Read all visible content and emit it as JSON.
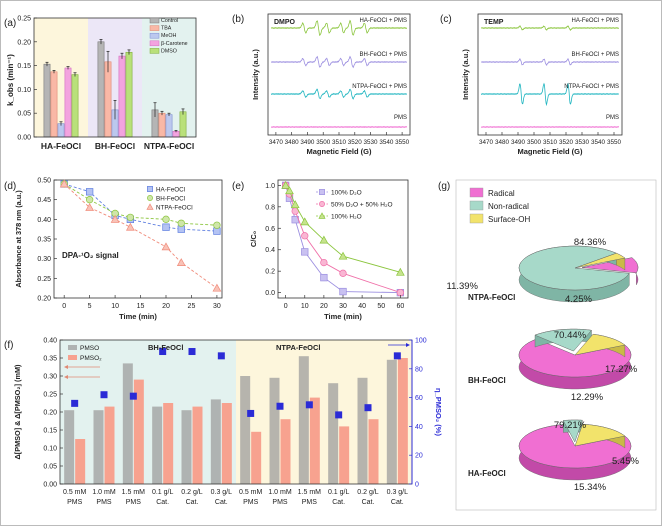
{
  "figure_colors": {
    "pink": "#f06fd2",
    "green": "#8cc63f",
    "grey": "#9e9e9e",
    "salmon": "#f7a28f",
    "blue": "#2b2bd6",
    "cyan": "#1fb5c0",
    "purple": "#9c8fe0",
    "teal_pie": "#a7d9c9",
    "yellow_pie": "#f2e36b",
    "yellow_bg": "#fdf6dc",
    "purple_bg": "#ece7f7",
    "teal_bg": "#e3f2ef"
  },
  "chart_data": [
    {
      "panel": "(a)",
      "type": "bar",
      "ylabel": "k_obs (min⁻¹)",
      "ylim": [
        0,
        0.25
      ],
      "yticks": [
        "0.00",
        "0.05",
        "0.10",
        "0.15",
        "0.20",
        "0.25"
      ],
      "categories": [
        "HA-FeOCl",
        "BH-FeOCl",
        "NTPA-FeOCl"
      ],
      "series": [
        {
          "name": "Control",
          "values": [
            0.153,
            0.2,
            0.057
          ],
          "errors": [
            0.004,
            0.005,
            0.015
          ]
        },
        {
          "name": "TBA",
          "values": [
            0.137,
            0.158,
            0.05
          ],
          "errors": [
            0.003,
            0.022,
            0.004
          ]
        },
        {
          "name": "MeOH",
          "values": [
            0.028,
            0.057,
            0.047
          ],
          "errors": [
            0.004,
            0.02,
            0.003
          ]
        },
        {
          "name": "β-Carotene",
          "values": [
            0.145,
            0.17,
            0.012
          ],
          "errors": [
            0.003,
            0.006,
            0.002
          ]
        },
        {
          "name": "DMSO",
          "values": [
            0.131,
            0.178,
            0.053
          ],
          "errors": [
            0.004,
            0.005,
            0.006
          ]
        }
      ]
    },
    {
      "panel": "(b)",
      "type": "line",
      "title": "DMPO",
      "xlabel": "Magnetic Field (G)",
      "ylabel": "Intensity (a.u.)",
      "xlim": [
        3465,
        3555
      ],
      "xticks": [
        "3470",
        "3480",
        "3490",
        "3500",
        "3510",
        "3520",
        "3530",
        "3540",
        "3550"
      ],
      "series": [
        {
          "name": "HA-FeOCl + PMS"
        },
        {
          "name": "BH-FeOCl + PMS"
        },
        {
          "name": "NTPA-FeOCl + PMS"
        },
        {
          "name": "PMS"
        }
      ]
    },
    {
      "panel": "(c)",
      "type": "line",
      "title": "TEMP",
      "xlabel": "Magnetic Field (G)",
      "ylabel": "Intensity (a.u.)",
      "xlim": [
        3465,
        3555
      ],
      "xticks": [
        "3470",
        "3480",
        "3490",
        "3500",
        "3510",
        "3520",
        "3530",
        "3540",
        "3550"
      ],
      "series": [
        {
          "name": "HA-FeOCl + PMS"
        },
        {
          "name": "BH-FeOCl + PMS"
        },
        {
          "name": "NTPA-FeOCl + PMS"
        },
        {
          "name": "PMS"
        }
      ]
    },
    {
      "panel": "(d)",
      "type": "line",
      "xlabel": "Time (min)",
      "ylabel": "Absorbance at 378 nm (a.u.)",
      "xlim": [
        -2,
        31
      ],
      "ylim": [
        0.2,
        0.5
      ],
      "xticks": [
        "0",
        "5",
        "10",
        "15",
        "20",
        "25",
        "30"
      ],
      "yticks": [
        "0.20",
        "0.25",
        "0.30",
        "0.35",
        "0.40",
        "0.45",
        "0.50"
      ],
      "annotation": "DPA-¹O₂ signal",
      "x": [
        0,
        5,
        10,
        13,
        20,
        23,
        30
      ],
      "series": [
        {
          "name": "HA-FeOCl",
          "values": [
            0.49,
            0.47,
            0.41,
            0.4,
            0.38,
            0.375,
            0.37
          ]
        },
        {
          "name": "BH-FeOCl",
          "values": [
            0.49,
            0.45,
            0.415,
            0.405,
            0.4,
            0.39,
            0.385
          ]
        },
        {
          "name": "NTPA-FeOCl",
          "values": [
            0.49,
            0.43,
            0.4,
            0.38,
            0.33,
            0.29,
            0.225
          ]
        }
      ]
    },
    {
      "panel": "(e)",
      "type": "line",
      "xlabel": "Time (min)",
      "ylabel": "C/C₀",
      "xlim": [
        -4,
        64
      ],
      "ylim": [
        -0.05,
        1.05
      ],
      "xticks": [
        "0",
        "10",
        "20",
        "30",
        "40",
        "50",
        "60"
      ],
      "yticks": [
        "0.0",
        "0.2",
        "0.4",
        "0.6",
        "0.8",
        "1.0"
      ],
      "x": [
        0,
        2,
        5,
        10,
        20,
        30,
        60
      ],
      "series": [
        {
          "name": "100% D₂O",
          "values": [
            1.0,
            0.88,
            0.68,
            0.38,
            0.14,
            0.01,
            0.0
          ]
        },
        {
          "name": "50% D₂O + 50% H₂O",
          "values": [
            1.0,
            0.92,
            0.76,
            0.53,
            0.28,
            0.18,
            0.0
          ]
        },
        {
          "name": "100% H₂O",
          "values": [
            1.0,
            0.95,
            0.82,
            0.66,
            0.49,
            0.34,
            0.19
          ]
        }
      ]
    },
    {
      "panel": "(f)",
      "type": "bar",
      "ylabel": "Δ[PMSO] & Δ[PMSO₂] (mM)",
      "y2label": "η_PMSO₂ (%)",
      "ylim": [
        0,
        0.4
      ],
      "y2lim": [
        0,
        100
      ],
      "yticks": [
        "0.00",
        "0.05",
        "0.10",
        "0.15",
        "0.20",
        "0.25",
        "0.30",
        "0.35",
        "0.40"
      ],
      "y2ticks": [
        "0",
        "20",
        "40",
        "60",
        "80",
        "100"
      ],
      "group_labels": [
        "BH-FeOCl",
        "NTPA-FeOCl"
      ],
      "categories": [
        [
          "0.5 mM",
          "PMS"
        ],
        [
          "1.0 mM",
          "PMS"
        ],
        [
          "1.5 mM",
          "PMS"
        ],
        [
          "0.1 g/L",
          "Cat."
        ],
        [
          "0.2 g/L",
          "Cat."
        ],
        [
          "0.3 g/L",
          "Cat."
        ],
        [
          "0.5 mM",
          "PMS"
        ],
        [
          "1.0 mM",
          "PMS"
        ],
        [
          "1.5 mM",
          "PMS"
        ],
        [
          "0.1 g/L",
          "Cat."
        ],
        [
          "0.2 g/L",
          "Cat."
        ],
        [
          "0.3 g/L",
          "Cat."
        ]
      ],
      "series": [
        {
          "name": "PMSO",
          "values": [
            0.205,
            0.205,
            0.335,
            0.215,
            0.205,
            0.235,
            0.3,
            0.295,
            0.355,
            0.28,
            0.295,
            0.345
          ]
        },
        {
          "name": "PMSO₂",
          "values": [
            0.125,
            0.215,
            0.29,
            0.225,
            0.215,
            0.225,
            0.145,
            0.18,
            0.24,
            0.16,
            0.18,
            0.35
          ]
        },
        {
          "name": "η_PMSO₂",
          "axis": "right",
          "values": [
            56,
            62,
            61,
            92,
            92,
            89,
            49,
            54,
            55,
            48,
            53,
            89
          ]
        }
      ]
    },
    {
      "panel": "(g)",
      "type": "pie",
      "legend": [
        "Radical",
        "Non-radical",
        "Surface-OH"
      ],
      "pies": [
        {
          "name": "NTPA-FeOCl",
          "values": [
            11.39,
            84.36,
            4.25
          ],
          "labels": [
            "11.39%",
            "84.36%",
            "4.25%"
          ]
        },
        {
          "name": "BH-FeOCl",
          "values": [
            70.44,
            17.27,
            12.29
          ],
          "labels": [
            "70.44%",
            "17.27%",
            "12.29%"
          ]
        },
        {
          "name": "HA-FeOCl",
          "values": [
            79.21,
            5.45,
            15.34
          ],
          "labels": [
            "79.21%",
            "5.45%",
            "15.34%"
          ]
        }
      ]
    }
  ]
}
